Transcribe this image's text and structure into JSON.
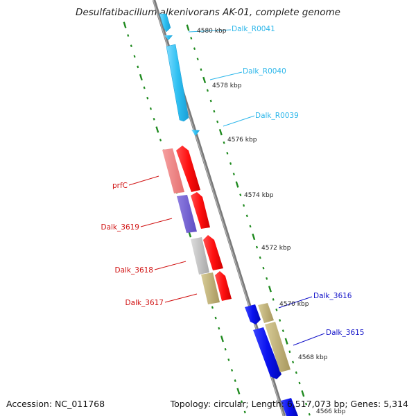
{
  "title": "Desulfatibacillum alkenivorans AK-01, complete genome",
  "footer": {
    "accession": "Accession: NC_011768",
    "summary": "Topology: circular; Length: 6,517,073 bp; Genes: 5,314"
  },
  "colors": {
    "backbone": "#8a8a8a",
    "tick": "#1f8a1f",
    "rna": "#33c3f0",
    "red_strand": "#ff1a1a",
    "blue_strand": "#0a14e6",
    "label_rna": "#2bb6ea",
    "label_red": "#d01010",
    "label_blue": "#1010c8"
  },
  "kbp_labels": [
    "4580 kbp",
    "4578 kbp",
    "4576 kbp",
    "4574 kbp",
    "4572 kbp",
    "4570 kbp",
    "4568 kbp",
    "4566 kbp"
  ],
  "gene_labels": {
    "dalk_r0041": "Dalk_R0041",
    "dalk_r0040": "Dalk_R0040",
    "dalk_r0039": "Dalk_R0039",
    "prfc": "prfC",
    "dalk_3619": "Dalk_3619",
    "dalk_3618": "Dalk_3618",
    "dalk_3617": "Dalk_3617",
    "dalk_3616": "Dalk_3616",
    "dalk_3615": "Dalk_3615"
  }
}
